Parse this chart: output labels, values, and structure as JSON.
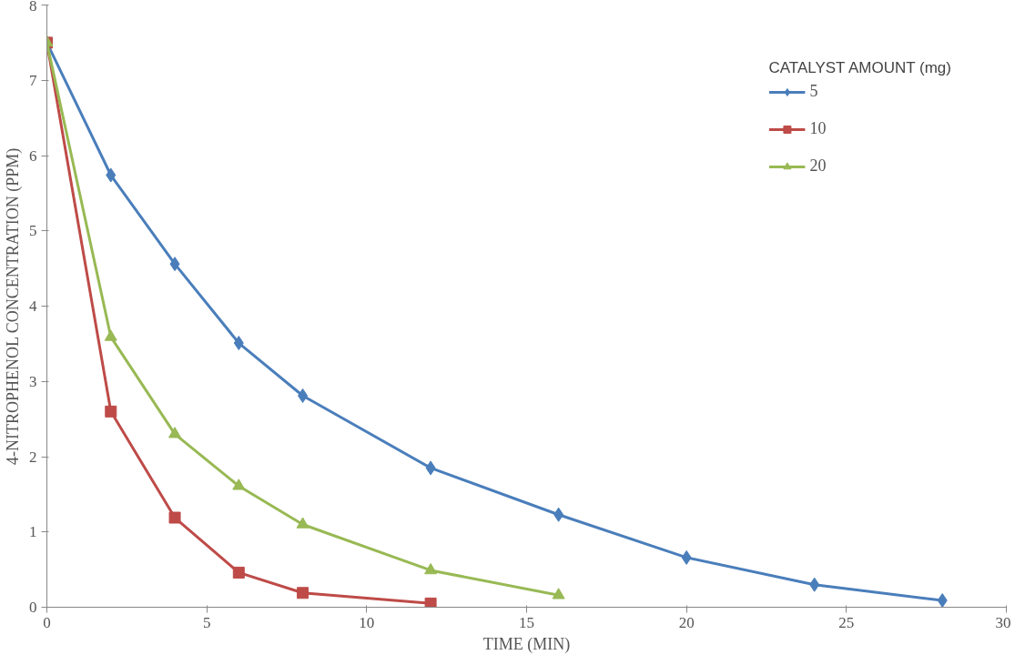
{
  "chart_data": {
    "type": "line",
    "xlabel": "TIME (MIN)",
    "ylabel": "4-NITROPHENOL CONCENTRATION (PPM)",
    "legend_title": "CATALYST AMOUNT (mg)",
    "legend": "top right",
    "grid": false,
    "line_style": "solid",
    "xlim": [
      0,
      30
    ],
    "xticks": [
      0,
      5,
      10,
      15,
      20,
      25,
      30
    ],
    "ylim": [
      0,
      8
    ],
    "yticks": [
      0,
      1,
      2,
      3,
      4,
      5,
      6,
      7,
      8
    ],
    "series": [
      {
        "name": "5",
        "color": "#4a7ebb",
        "marker": "diamond",
        "x": [
          0,
          2,
          4,
          6,
          8,
          12,
          16,
          20,
          24,
          28
        ],
        "values": [
          7.5,
          5.74,
          4.56,
          3.51,
          2.81,
          1.85,
          1.23,
          0.66,
          0.3,
          0.09
        ]
      },
      {
        "name": "10",
        "color": "#be4b48",
        "marker": "square",
        "x": [
          0,
          2,
          4,
          6,
          8,
          12
        ],
        "values": [
          7.5,
          2.6,
          1.19,
          0.46,
          0.19,
          0.05
        ]
      },
      {
        "name": "20",
        "color": "#98b954",
        "marker": "triangle",
        "x": [
          0,
          2,
          4,
          6,
          8,
          12,
          16
        ],
        "values": [
          7.5,
          3.59,
          2.3,
          1.61,
          1.1,
          0.49,
          0.16
        ]
      }
    ]
  }
}
